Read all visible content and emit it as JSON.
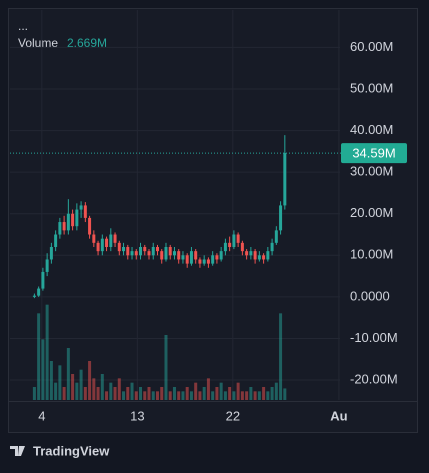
{
  "chart_data": {
    "type": "candlestick",
    "header": "...",
    "brand": "TradingView",
    "x": [
      3.3,
      3.7,
      4.1,
      4.5,
      4.9,
      5.3,
      5.7,
      6.1,
      6.5,
      6.9,
      7.3,
      7.7,
      8.1,
      8.5,
      8.9,
      9.3,
      9.7,
      10.1,
      10.5,
      10.9,
      11.3,
      11.7,
      12.1,
      12.5,
      12.9,
      13.3,
      13.7,
      14.1,
      14.5,
      14.9,
      15.3,
      15.7,
      16.1,
      16.5,
      16.9,
      17.3,
      17.7,
      18.1,
      18.5,
      18.9,
      19.3,
      19.7,
      20.1,
      20.5,
      20.9,
      21.3,
      21.7,
      22.1,
      22.5,
      22.9,
      23.3,
      23.7,
      24.1,
      24.5,
      24.9,
      25.3,
      25.7,
      26.1,
      26.5,
      26.9
    ],
    "open": [
      0,
      0.3,
      2,
      6,
      9,
      12,
      15,
      18,
      16,
      20,
      17,
      21,
      22,
      19,
      15,
      13,
      11,
      14,
      12,
      15,
      13,
      11,
      12,
      10,
      11,
      10,
      12,
      11,
      10,
      12,
      11,
      9,
      12,
      10,
      11,
      9,
      10,
      8,
      11,
      9,
      8,
      9,
      8,
      10,
      9,
      11,
      13,
      12,
      15,
      13,
      11,
      10,
      11,
      9,
      10,
      9,
      11,
      13,
      16,
      22
    ],
    "high": [
      0.8,
      2.5,
      7,
      10.5,
      13,
      16,
      19,
      19.5,
      23.5,
      21,
      22.5,
      23,
      22.8,
      19.5,
      16,
      13.5,
      15,
      14.5,
      16.5,
      15.5,
      13.5,
      13,
      12.5,
      12,
      11.5,
      13,
      12.5,
      11.5,
      13,
      12.5,
      11.5,
      13,
      12.5,
      12,
      11.5,
      11,
      10.5,
      12,
      11.5,
      9.5,
      10,
      9.5,
      11,
      10.5,
      12,
      14,
      14.5,
      16,
      15.5,
      13.5,
      11.5,
      12,
      11.5,
      11,
      10.5,
      12,
      14,
      17,
      23,
      38.9
    ],
    "low": [
      -0.3,
      0,
      1.5,
      5,
      8,
      11,
      14,
      15,
      15,
      16,
      16,
      19,
      18,
      14,
      12,
      10,
      10,
      11,
      11,
      12,
      10,
      10,
      9,
      9,
      9,
      9,
      10,
      9,
      9,
      10,
      8,
      8.5,
      9,
      9,
      8,
      8,
      7,
      7.5,
      8,
      7,
      7.5,
      7,
      7.5,
      8,
      8.5,
      10,
      11,
      11.5,
      12,
      10,
      9,
      9,
      8,
      8.5,
      8,
      8.5,
      10,
      12.5,
      15,
      21
    ],
    "close": [
      0.3,
      2,
      6,
      9,
      12,
      15,
      18,
      16,
      20,
      17,
      21,
      22,
      19,
      15,
      13,
      11,
      14,
      12,
      15,
      13,
      11,
      12,
      10,
      11,
      10,
      12,
      11,
      10,
      12,
      11,
      9,
      12,
      10,
      11,
      9,
      10,
      8,
      11,
      9,
      8,
      9,
      8,
      10,
      9,
      11,
      13,
      12,
      15,
      13,
      11,
      10,
      11,
      9,
      10,
      9,
      11,
      13,
      16,
      22,
      34.59
    ],
    "up_color": "#26a69a",
    "down_color": "#ef5350",
    "volume": {
      "name": "Volume",
      "values": [
        3,
        20,
        14,
        22,
        9,
        4,
        8,
        3,
        12,
        6,
        4,
        7,
        3,
        9,
        5,
        3,
        6,
        2,
        4,
        3,
        5,
        2,
        3,
        4,
        2,
        3,
        2,
        3,
        2,
        2,
        3,
        15,
        2,
        3,
        2,
        2,
        3,
        2,
        4,
        2,
        3,
        5,
        2,
        3,
        4,
        2,
        3,
        2,
        4,
        2,
        2,
        3,
        2,
        2,
        3,
        2,
        3,
        4,
        20,
        2.669
      ],
      "last_label": "2.669M",
      "axis": "y2"
    },
    "y2lim": [
      0,
      90
    ],
    "last_price": {
      "value": 34.59,
      "label": "34.59M"
    },
    "xlim": [
      1,
      32.1
    ],
    "xticks": [
      4,
      13,
      22,
      {
        "value": 32,
        "label": "Au"
      }
    ],
    "ylim": [
      -24.8,
      69
    ],
    "yticks": [
      {
        "value": 60,
        "label": "60.00M"
      },
      {
        "value": 50,
        "label": "50.00M"
      },
      {
        "value": 40,
        "label": "40.00M"
      },
      {
        "value": 30,
        "label": "30.00M"
      },
      {
        "value": 20,
        "label": "20.00M"
      },
      {
        "value": 10,
        "label": "10.00M"
      },
      {
        "value": 0,
        "label": "0.0000"
      },
      {
        "value": -10,
        "label": "-10.00M"
      },
      {
        "value": -20,
        "label": "-20.00M"
      }
    ],
    "grid": true
  }
}
